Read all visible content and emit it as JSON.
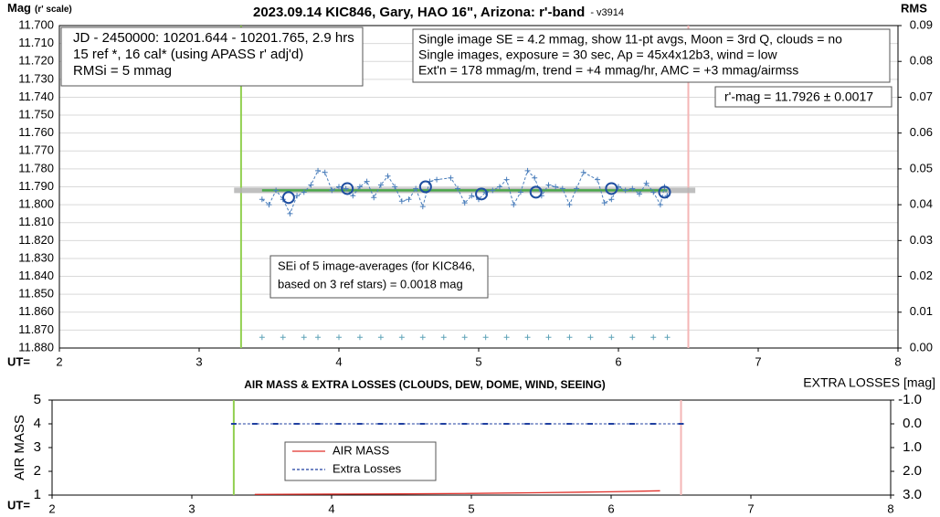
{
  "chart_data": [
    {
      "type": "scatter",
      "title": "2023.09.14 KIC846, Gary, HAO 16\", Arizona: r'-band",
      "subtitle": "- v3914",
      "ylabel": "Mag",
      "ylabel_note": "(r' scale)",
      "y2label": "RMS",
      "xlabel": "UT=",
      "xlim": [
        2,
        8
      ],
      "xticks": [
        2,
        3,
        4,
        5,
        6,
        7,
        8
      ],
      "ylim": [
        11.7,
        11.88
      ],
      "y_reversed": true,
      "yticks": [
        {
          "value": 11.7,
          "label": "11.700"
        },
        {
          "value": 11.71,
          "label": "11.710"
        },
        {
          "value": 11.72,
          "label": "11.720"
        },
        {
          "value": 11.73,
          "label": "11.730"
        },
        {
          "value": 11.74,
          "label": "11.740"
        },
        {
          "value": 11.75,
          "label": "11.750"
        },
        {
          "value": 11.76,
          "label": "11.760"
        },
        {
          "value": 11.77,
          "label": "11.770"
        },
        {
          "value": 11.78,
          "label": "11.780"
        },
        {
          "value": 11.79,
          "label": "11.790"
        },
        {
          "value": 11.8,
          "label": "11.800"
        },
        {
          "value": 11.81,
          "label": "11.810"
        },
        {
          "value": 11.82,
          "label": "11.820"
        },
        {
          "value": 11.83,
          "label": "11.830"
        },
        {
          "value": 11.84,
          "label": "11.840"
        },
        {
          "value": 11.85,
          "label": "11.850"
        },
        {
          "value": 11.86,
          "label": "11.860"
        },
        {
          "value": 11.87,
          "label": "11.870"
        },
        {
          "value": 11.88,
          "label": "11.880"
        }
      ],
      "y2lim": [
        0,
        0.09
      ],
      "y2ticks": [
        {
          "value": 0,
          "label": "0.00"
        },
        {
          "value": 0.01,
          "label": "0.01"
        },
        {
          "value": 0.02,
          "label": "0.02"
        },
        {
          "value": 0.03,
          "label": "0.03"
        },
        {
          "value": 0.04,
          "label": "0.04"
        },
        {
          "value": 0.05,
          "label": "0.05"
        },
        {
          "value": 0.06,
          "label": "0.06"
        },
        {
          "value": 0.07,
          "label": "0.07"
        },
        {
          "value": 0.08,
          "label": "0.08"
        },
        {
          "value": 0.09,
          "label": "0.09"
        }
      ],
      "grid": true,
      "vlines": [
        {
          "x": 3.3,
          "color": "#92d050"
        },
        {
          "x": 6.5,
          "color": "#f4b6b6"
        }
      ],
      "series": [
        {
          "color": "#7fa7d8",
          "line": "band",
          "marker": null,
          "x": [
            3.25,
            6.55
          ],
          "values": [
            11.792,
            11.792
          ]
        },
        {
          "color": "#4aa84a",
          "line": "solid",
          "marker": null,
          "x": [
            3.45,
            6.35
          ],
          "values": [
            11.792,
            11.792
          ]
        },
        {
          "color": "#4a7ebb",
          "line": "dashed",
          "marker": "+",
          "x": [
            3.45,
            3.5,
            3.55,
            3.6,
            3.65,
            3.7,
            3.75,
            3.8,
            3.85,
            3.9,
            3.95,
            4.0,
            4.05,
            4.1,
            4.15,
            4.2,
            4.25,
            4.3,
            4.35,
            4.4,
            4.45,
            4.5,
            4.55,
            4.6,
            4.65,
            4.7,
            4.8,
            4.85,
            4.9,
            4.95,
            5.0,
            5.05,
            5.1,
            5.15,
            5.2,
            5.25,
            5.3,
            5.35,
            5.4,
            5.45,
            5.5,
            5.55,
            5.6,
            5.65,
            5.7,
            5.75,
            5.85,
            5.9,
            5.95,
            6.0,
            6.05,
            6.1,
            6.15,
            6.2,
            6.25,
            6.3,
            6.33,
            6.35
          ],
          "values": [
            11.797,
            11.8,
            11.792,
            11.797,
            11.805,
            11.795,
            11.793,
            11.789,
            11.781,
            11.782,
            11.792,
            11.79,
            11.791,
            11.795,
            11.79,
            11.787,
            11.796,
            11.789,
            11.784,
            11.79,
            11.798,
            11.797,
            11.791,
            11.801,
            11.787,
            11.786,
            11.785,
            11.791,
            11.799,
            11.795,
            11.797,
            11.793,
            11.792,
            11.79,
            11.786,
            11.8,
            11.793,
            11.781,
            11.785,
            11.795,
            11.789,
            11.79,
            11.791,
            11.8,
            11.791,
            11.782,
            11.786,
            11.799,
            11.797,
            11.79,
            11.792,
            11.791,
            11.794,
            11.788,
            11.793,
            11.8,
            11.79,
            11.795
          ]
        },
        {
          "color": "#1f4ea0",
          "line": "none",
          "marker": "o",
          "x": [
            3.64,
            4.06,
            4.62,
            5.02,
            5.41,
            5.95,
            6.33
          ],
          "values": [
            11.796,
            11.791,
            11.79,
            11.794,
            11.793,
            11.791,
            11.793
          ]
        },
        {
          "color": "#5fa3b8",
          "line": "none",
          "marker": "+",
          "axis": "y2",
          "x": [
            3.45,
            3.6,
            3.75,
            3.85,
            4.0,
            4.15,
            4.3,
            4.45,
            4.6,
            4.75,
            4.9,
            5.05,
            5.2,
            5.35,
            5.5,
            5.65,
            5.8,
            5.95,
            6.1,
            6.25,
            6.35
          ],
          "values": [
            0.003,
            0.003,
            0.003,
            0.003,
            0.003,
            0.003,
            0.003,
            0.003,
            0.003,
            0.003,
            0.003,
            0.003,
            0.003,
            0.003,
            0.003,
            0.003,
            0.003,
            0.003,
            0.003,
            0.003,
            0.003
          ]
        }
      ],
      "annotations": [
        {
          "lines": [
            "JD - 2450000: 10201.644 - 10201.765, 2.9 hrs",
            "15 ref *, 16 cal* (using APASS r' adj'd)",
            "RMSi = 5 mmag"
          ]
        },
        {
          "lines": [
            "Single image SE = 4.2 mmag, show  11-pt avgs, Moon = 3rd Q, clouds = no",
            "Single images, exposure = 30 sec, Ap = 45x4x12b3, wind = low",
            "Ext'n = 178 mmag/m, trend = +4  mmag/hr, AMC = +3 mmag/airmss"
          ]
        },
        {
          "lines": [
            "r'-mag = 11.7926 ± 0.0017"
          ]
        },
        {
          "lines": [
            "SEi of 5 image-averages (for KIC846,",
            "based on 3 ref stars) = 0.0018 mag"
          ]
        }
      ]
    },
    {
      "type": "line",
      "title": "AIR MASS & EXTRA LOSSES (CLOUDS, DEW, DOME, WIND, SEEING)",
      "ylabel": "AIR MASS",
      "y2label": "EXTRA LOSSES [mag]",
      "xlabel": "UT=",
      "xlim": [
        2,
        8
      ],
      "xticks": [
        2,
        3,
        4,
        5,
        6,
        7,
        8
      ],
      "ylim": [
        1,
        5
      ],
      "yticks": [
        1,
        2,
        3,
        4,
        5
      ],
      "y2lim": [
        -1,
        3
      ],
      "y2_reversed": true,
      "y2ticks": [
        {
          "value": -1,
          "label": "-1.0"
        },
        {
          "value": 0,
          "label": "0.0"
        },
        {
          "value": 1,
          "label": "1.0"
        },
        {
          "value": 2,
          "label": "2.0"
        },
        {
          "value": 3,
          "label": "3.0"
        }
      ],
      "grid": false,
      "vlines": [
        {
          "x": 3.3,
          "color": "#92d050"
        },
        {
          "x": 6.5,
          "color": "#f4b6b6"
        }
      ],
      "series": [
        {
          "name": "AIR MASS",
          "color": "#e0302a",
          "line": "solid",
          "marker": null,
          "x": [
            3.45,
            4.0,
            4.5,
            5.0,
            5.5,
            6.0,
            6.35
          ],
          "values": [
            1.03,
            1.04,
            1.05,
            1.07,
            1.1,
            1.14,
            1.18
          ]
        },
        {
          "name": "Extra Losses",
          "color": "#1f3fa0",
          "line": "dashed",
          "marker": "-",
          "axis": "y2",
          "x": [
            3.3,
            3.45,
            3.6,
            3.75,
            3.9,
            4.05,
            4.2,
            4.35,
            4.5,
            4.65,
            4.8,
            4.95,
            5.1,
            5.25,
            5.4,
            5.55,
            5.7,
            5.85,
            6.0,
            6.15,
            6.3,
            6.5
          ],
          "values": [
            0,
            0,
            0,
            0,
            0,
            0,
            0,
            0,
            0,
            0,
            0,
            0,
            0,
            0,
            0,
            0,
            0,
            0,
            0,
            0,
            0,
            0
          ]
        }
      ]
    }
  ]
}
